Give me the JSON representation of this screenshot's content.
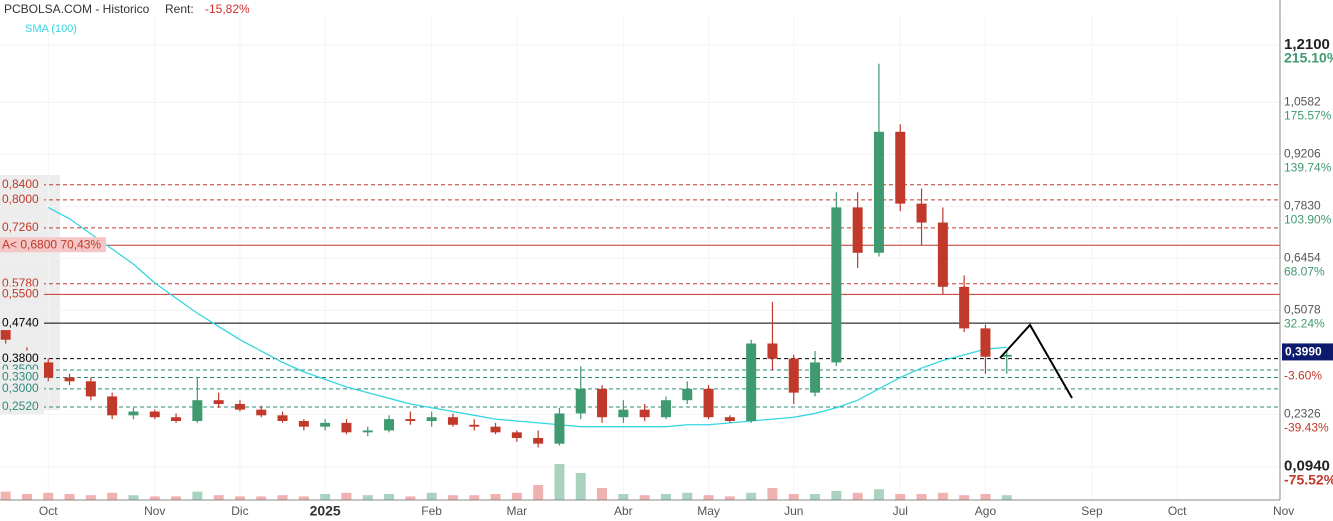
{
  "chart_data": {
    "type": "candlestick",
    "title": "PCBOLSA.COM - Historico",
    "rent_label": "Rent:",
    "rent_value": "-15,82%",
    "categories": [
      null,
      null,
      "Oct",
      null,
      null,
      null,
      null,
      "Nov",
      null,
      null,
      null,
      "Dic",
      null,
      null,
      null,
      "2025",
      null,
      null,
      null,
      null,
      "Feb",
      null,
      null,
      null,
      "Mar",
      null,
      null,
      null,
      null,
      "Abr",
      null,
      null,
      null,
      "May",
      null,
      null,
      null,
      "Jun",
      null,
      null,
      null,
      null,
      "Jul",
      null,
      null,
      null,
      "Ago",
      null,
      null,
      null,
      null,
      "Sep",
      null,
      null,
      null,
      "Oct",
      null,
      null,
      null,
      null,
      "Nov"
    ],
    "open": [
      0.47,
      0.4,
      0.37,
      0.33,
      0.32,
      0.28,
      0.23,
      0.24,
      0.225,
      0.215,
      0.27,
      0.26,
      0.245,
      0.23,
      0.215,
      0.2,
      0.21,
      0.185,
      0.19,
      0.22,
      0.215,
      0.225,
      0.205,
      0.2,
      0.185,
      0.17,
      0.155,
      0.235,
      0.3,
      0.225,
      0.245,
      0.225,
      0.27,
      0.3,
      0.225,
      0.215,
      0.42,
      0.38,
      0.29,
      0.37,
      0.78,
      0.66,
      0.98,
      0.79,
      0.74,
      0.57,
      0.46,
      0.385,
      null,
      null,
      null,
      null,
      null,
      null,
      null,
      null,
      null,
      null,
      null,
      null,
      null
    ],
    "high": [
      0.48,
      0.41,
      0.38,
      0.34,
      0.33,
      0.29,
      0.25,
      0.245,
      0.235,
      0.33,
      0.29,
      0.27,
      0.255,
      0.24,
      0.22,
      0.22,
      0.22,
      0.2,
      0.23,
      0.24,
      0.24,
      0.235,
      0.22,
      0.21,
      0.19,
      0.19,
      0.25,
      0.36,
      0.31,
      0.27,
      0.26,
      0.28,
      0.32,
      0.31,
      0.23,
      0.43,
      0.53,
      0.39,
      0.4,
      0.82,
      0.82,
      1.16,
      1.0,
      0.83,
      0.78,
      0.6,
      0.47,
      0.4,
      null,
      null,
      null,
      null,
      null,
      null,
      null,
      null,
      null,
      null,
      null,
      null,
      null
    ],
    "low": [
      0.42,
      0.36,
      0.32,
      0.31,
      0.27,
      0.22,
      0.22,
      0.22,
      0.21,
      0.21,
      0.25,
      0.24,
      0.225,
      0.21,
      0.19,
      0.19,
      0.18,
      0.175,
      0.185,
      0.205,
      0.2,
      0.2,
      0.19,
      0.18,
      0.16,
      0.145,
      0.15,
      0.22,
      0.21,
      0.21,
      0.215,
      0.22,
      0.26,
      0.22,
      0.21,
      0.21,
      0.35,
      0.26,
      0.28,
      0.36,
      0.62,
      0.65,
      0.77,
      0.68,
      0.55,
      0.45,
      0.34,
      0.34,
      null,
      null,
      null,
      null,
      null,
      null,
      null,
      null,
      null,
      null,
      null,
      null,
      null
    ],
    "close": [
      0.43,
      0.37,
      0.33,
      0.32,
      0.28,
      0.23,
      0.24,
      0.225,
      0.215,
      0.27,
      0.26,
      0.245,
      0.23,
      0.215,
      0.2,
      0.21,
      0.185,
      0.19,
      0.22,
      0.215,
      0.225,
      0.205,
      0.2,
      0.185,
      0.17,
      0.155,
      0.235,
      0.3,
      0.225,
      0.245,
      0.225,
      0.27,
      0.3,
      0.225,
      0.215,
      0.42,
      0.38,
      0.29,
      0.37,
      0.78,
      0.66,
      0.98,
      0.79,
      0.74,
      0.57,
      0.46,
      0.385,
      0.39,
      null,
      null,
      null,
      null,
      null,
      null,
      null,
      null,
      null,
      null,
      null,
      null,
      null
    ],
    "up_color": "#3f9a70",
    "down_color": "#c0392b",
    "volume": {
      "values": [
        14,
        10,
        12,
        10,
        8,
        12,
        8,
        6,
        6,
        14,
        8,
        6,
        6,
        8,
        6,
        10,
        12,
        8,
        10,
        6,
        12,
        8,
        8,
        10,
        12,
        25,
        60,
        45,
        20,
        10,
        8,
        10,
        12,
        8,
        6,
        12,
        20,
        10,
        10,
        15,
        12,
        18,
        10,
        10,
        12,
        8,
        10,
        8,
        null,
        null,
        null,
        null,
        null,
        null,
        null,
        null,
        null,
        null,
        null,
        null,
        null
      ],
      "ylim": [
        0,
        100
      ]
    },
    "series": [
      {
        "name": "SMA (100)",
        "color": "#35d6e0",
        "values": [
          null,
          null,
          0.78,
          0.75,
          0.71,
          0.67,
          0.63,
          0.58,
          0.54,
          0.5,
          0.465,
          0.43,
          0.4,
          0.37,
          0.345,
          0.325,
          0.305,
          0.29,
          0.275,
          0.26,
          0.25,
          0.24,
          0.23,
          0.22,
          0.215,
          0.21,
          0.205,
          0.2,
          0.2,
          0.2,
          0.2,
          0.2,
          0.205,
          0.205,
          0.21,
          0.215,
          0.22,
          0.225,
          0.235,
          0.25,
          0.27,
          0.3,
          0.33,
          0.355,
          0.375,
          0.39,
          0.405,
          0.41,
          null,
          null,
          null,
          null,
          null,
          null,
          null,
          null,
          null,
          null,
          null,
          null,
          null
        ]
      }
    ],
    "levels": [
      {
        "value": 0.84,
        "label": "0,8400",
        "color": "#c0392b",
        "line": "dashed"
      },
      {
        "value": 0.8,
        "label": "0,8000",
        "color": "#c0392b",
        "line": "dashed"
      },
      {
        "value": 0.726,
        "label": "0,7260",
        "color": "#c0392b",
        "line": "dashed"
      },
      {
        "value": 0.68,
        "label": "A< 0,6800  70,43%",
        "color": "#c0392b",
        "line": "solid"
      },
      {
        "value": 0.578,
        "label": "0,5780",
        "color": "#c0392b",
        "line": "dashed"
      },
      {
        "value": 0.55,
        "label": "0,5500",
        "color": "#c0392b",
        "line": "solid"
      },
      {
        "value": 0.474,
        "label": "0,4740",
        "color": "#000000",
        "line": "solid"
      },
      {
        "value": 0.38,
        "label": "0,3800",
        "color": "#000000",
        "line": "dashed"
      },
      {
        "value": 0.35,
        "label": "0,3500",
        "color": "#2e8b7a",
        "line": "dashed"
      },
      {
        "value": 0.33,
        "label": "0,3300",
        "color": "#2e8b7a",
        "line": "dashed"
      },
      {
        "value": 0.3,
        "label": "0,3000",
        "color": "#2e8b7a",
        "line": "dashed"
      },
      {
        "value": 0.252,
        "label": "0,2520",
        "color": "#2e8b7a",
        "line": "dashed"
      }
    ],
    "last": {
      "value": 0.399,
      "label": "0,3990"
    },
    "ylim": [
      0.006,
      1.289
    ],
    "yticks": [
      {
        "value": 1.21,
        "label": "1,2100"
      },
      {
        "value": 1.0582,
        "label": "1,0582"
      },
      {
        "value": 0.9206,
        "label": "0,9206"
      },
      {
        "value": 0.783,
        "label": "0,7830"
      },
      {
        "value": 0.6454,
        "label": "0,6454"
      },
      {
        "value": 0.5078,
        "label": "0,5078"
      },
      {
        "value": 0.2326,
        "label": "0,2326"
      },
      {
        "value": 0.094,
        "label": "0,0940"
      }
    ],
    "y2lim": [
      -98.44,
      235.67
    ],
    "y2ticks": [
      {
        "value": 215.1,
        "label": "215.10%"
      },
      {
        "value": 175.57,
        "label": "175.57%"
      },
      {
        "value": 139.74,
        "label": "139.74%"
      },
      {
        "value": 103.9,
        "label": "103.90%"
      },
      {
        "value": 68.07,
        "label": "68.07%"
      },
      {
        "value": 32.24,
        "label": "32.24%"
      },
      {
        "value": -3.6,
        "label": "-3.60%"
      },
      {
        "value": -39.43,
        "label": "-39.43%"
      },
      {
        "value": -75.52,
        "label": "-75.52%"
      }
    ],
    "grid": true
  }
}
